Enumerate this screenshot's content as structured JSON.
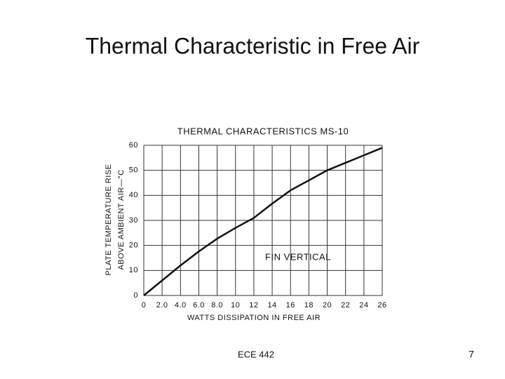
{
  "slide_title": "Thermal Characteristic in Free Air",
  "footer": "ECE 442",
  "page_number": "7",
  "chart_data": {
    "type": "line",
    "title": "THERMAL  CHARACTERISTICS MS-10",
    "xlabel": "WATTS DISSIPATION IN FREE AIR",
    "ylabel": [
      "PLATE TEMPERATURE RISE",
      "ABOVE AMBIENT AIR—°C"
    ],
    "annotation": "FIN VERTICAL",
    "x": [
      0,
      2,
      4,
      6,
      8,
      10,
      12,
      14,
      16,
      18,
      20,
      22,
      24,
      26
    ],
    "series": [
      {
        "name": "MS-10",
        "color": "#111111",
        "values": [
          0,
          6,
          12,
          17.6,
          22.7,
          27,
          31,
          36.7,
          42,
          46,
          50,
          53,
          56,
          59
        ]
      }
    ],
    "xlim": [
      0,
      26
    ],
    "ylim": [
      0,
      60
    ],
    "xticks": [
      0,
      {
        "value": 2,
        "label": "2.0"
      },
      {
        "value": 4,
        "label": "4.0"
      },
      {
        "value": 6,
        "label": "6.0"
      },
      {
        "value": 8,
        "label": "8.0"
      },
      10,
      12,
      14,
      16,
      18,
      20,
      22,
      24,
      26
    ],
    "yticks": [
      0,
      10,
      20,
      30,
      40,
      50,
      60
    ],
    "grid": true
  }
}
